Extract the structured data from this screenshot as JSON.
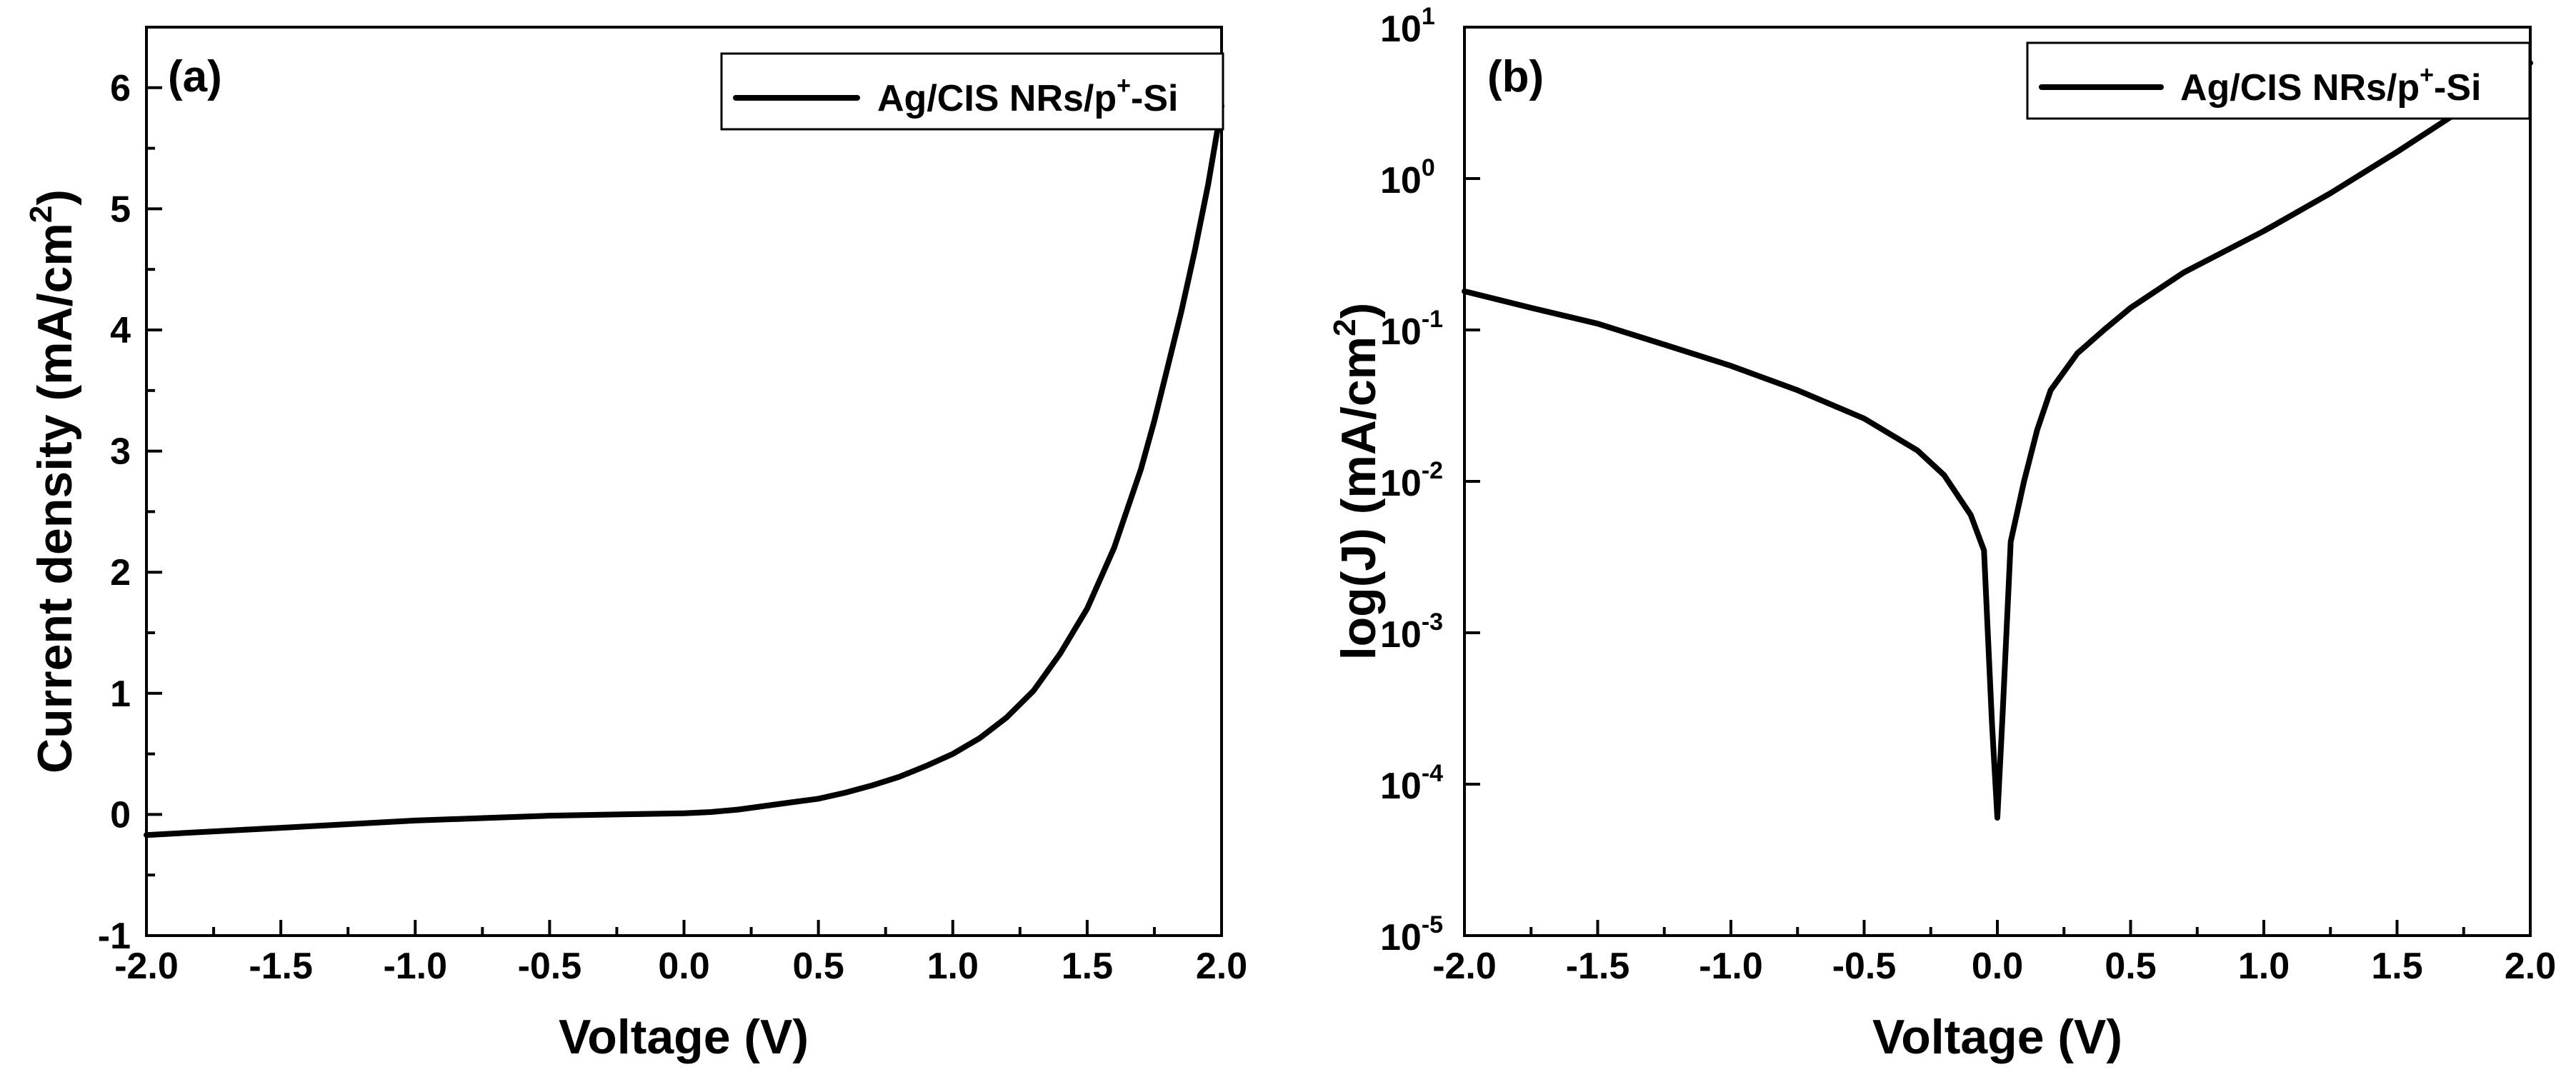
{
  "colors": {
    "axes": "#000000",
    "series": "#000000",
    "background": "#ffffff"
  },
  "chart_data": [
    {
      "type": "line",
      "panel_label": "(a)",
      "title": "",
      "xlabel": "Voltage (V)",
      "ylabel": "Current density (mA/cm",
      "ylabel_sup": "2",
      "ylabel_tail": ")",
      "xscale": "linear",
      "yscale": "linear",
      "xlim": [
        -2.0,
        2.0
      ],
      "ylim": [
        -1,
        6.5
      ],
      "xticks": [
        -2.0,
        -1.5,
        -1.0,
        -0.5,
        0.0,
        0.5,
        1.0,
        1.5,
        2.0
      ],
      "xtick_labels": [
        "-2.0",
        "-1.5",
        "-1.0",
        "-0.5",
        "0.0",
        "0.5",
        "1.0",
        "1.5",
        "2.0"
      ],
      "yticks": [
        -1,
        0,
        1,
        2,
        3,
        4,
        5,
        6
      ],
      "ytick_labels": [
        "-1",
        "0",
        "1",
        "2",
        "3",
        "4",
        "5",
        "6"
      ],
      "grid": false,
      "legend": {
        "placement": "top-right",
        "label": "Ag/CIS NRs/p",
        "label_sup": "+",
        "label_tail": "-Si"
      },
      "series": [
        {
          "name": "Ag/CIS NRs/p+-Si",
          "x": [
            -2.0,
            -1.75,
            -1.5,
            -1.25,
            -1.0,
            -0.75,
            -0.5,
            -0.25,
            0.0,
            0.1,
            0.2,
            0.3,
            0.4,
            0.5,
            0.6,
            0.7,
            0.8,
            0.9,
            1.0,
            1.1,
            1.2,
            1.3,
            1.4,
            1.5,
            1.6,
            1.7,
            1.75,
            1.8,
            1.85,
            1.9,
            1.95,
            2.0
          ],
          "y": [
            -0.17,
            -0.14,
            -0.11,
            -0.08,
            -0.05,
            -0.03,
            -0.01,
            0.0,
            0.01,
            0.02,
            0.04,
            0.07,
            0.1,
            0.13,
            0.18,
            0.24,
            0.31,
            0.4,
            0.5,
            0.63,
            0.8,
            1.02,
            1.33,
            1.7,
            2.2,
            2.85,
            3.25,
            3.7,
            4.15,
            4.65,
            5.2,
            5.85
          ]
        }
      ]
    },
    {
      "type": "line",
      "panel_label": "(b)",
      "title": "",
      "xlabel": "Voltage (V)",
      "ylabel": "log(J) (mA/cm",
      "ylabel_sup": "2",
      "ylabel_tail": ")",
      "xscale": "linear",
      "yscale": "log",
      "xlim": [
        -2.0,
        2.0
      ],
      "ylim": [
        1e-05,
        10
      ],
      "xticks": [
        -2.0,
        -1.5,
        -1.0,
        -0.5,
        0.0,
        0.5,
        1.0,
        1.5,
        2.0
      ],
      "xtick_labels": [
        "-2.0",
        "-1.5",
        "-1.0",
        "-0.5",
        "0.0",
        "0.5",
        "1.0",
        "1.5",
        "2.0"
      ],
      "yticks": [
        1e-05,
        0.0001,
        0.001,
        0.01,
        0.1,
        1,
        10
      ],
      "ytick_labels": [
        {
          "base": "10",
          "exp": "-5"
        },
        {
          "base": "10",
          "exp": "-4"
        },
        {
          "base": "10",
          "exp": "-3"
        },
        {
          "base": "10",
          "exp": "-2"
        },
        {
          "base": "10",
          "exp": "-1"
        },
        {
          "base": "10",
          "exp": "0"
        },
        {
          "base": "10",
          "exp": "1"
        }
      ],
      "grid": false,
      "legend": {
        "placement": "top-right",
        "label": "Ag/CIS NRs/p",
        "label_sup": "+",
        "label_tail": "-Si"
      },
      "series": [
        {
          "name": "Ag/CIS NRs/p+-Si",
          "x": [
            -2.0,
            -1.75,
            -1.5,
            -1.25,
            -1.0,
            -0.75,
            -0.5,
            -0.3,
            -0.2,
            -0.1,
            -0.05,
            -0.02,
            0.0,
            0.02,
            0.05,
            0.1,
            0.15,
            0.2,
            0.3,
            0.4,
            0.5,
            0.7,
            1.0,
            1.25,
            1.5,
            1.75,
            2.0
          ],
          "y": [
            0.18,
            0.14,
            0.11,
            0.08,
            0.058,
            0.04,
            0.026,
            0.016,
            0.011,
            0.006,
            0.0035,
            0.00025,
            6e-05,
            0.0003,
            0.004,
            0.01,
            0.022,
            0.04,
            0.07,
            0.1,
            0.14,
            0.24,
            0.45,
            0.8,
            1.5,
            2.9,
            5.8
          ]
        }
      ]
    }
  ]
}
